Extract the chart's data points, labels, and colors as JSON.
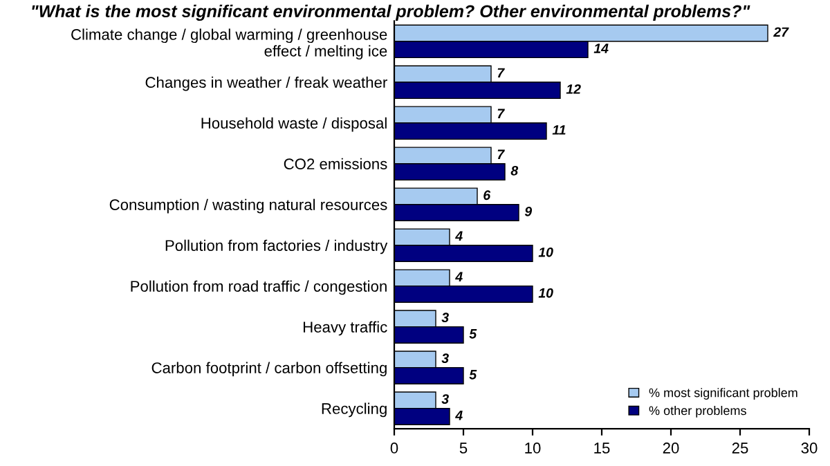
{
  "chart_data": {
    "type": "bar",
    "orientation": "horizontal",
    "title": "\"What is the most significant environmental problem? Other environmental problems?\"",
    "categories": [
      "Climate change / global warming / greenhouse\neffect / melting ice",
      "Changes in weather / freak weather",
      "Household waste / disposal",
      "CO2 emissions",
      "Consumption / wasting natural resources",
      "Pollution from factories / industry",
      "Pollution from road traffic / congestion",
      "Heavy traffic",
      "Carbon footprint / carbon offsetting",
      "Recycling"
    ],
    "series": [
      {
        "name": "% most significant problem",
        "color": "#a6caf0",
        "values": [
          27,
          7,
          7,
          7,
          6,
          4,
          4,
          3,
          3,
          3
        ]
      },
      {
        "name": "% other problems",
        "color": "#000080",
        "values": [
          14,
          12,
          11,
          8,
          9,
          10,
          10,
          5,
          5,
          4
        ]
      }
    ],
    "xlim": [
      0,
      30
    ],
    "xticks": [
      0,
      5,
      10,
      15,
      20,
      25,
      30
    ],
    "data_labels": true,
    "legend": "bottom right",
    "grid": false
  }
}
